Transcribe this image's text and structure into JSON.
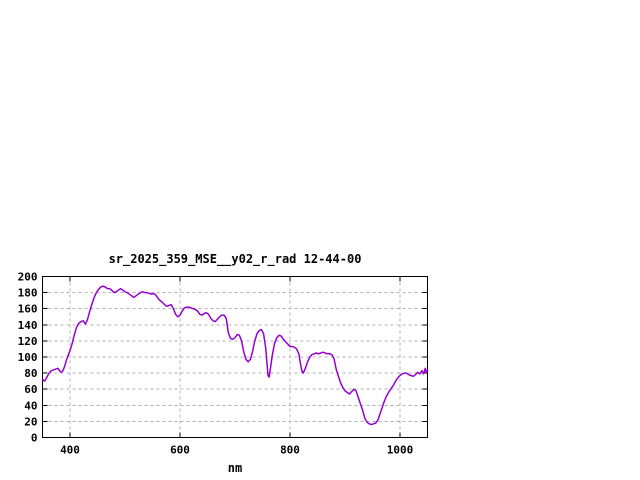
{
  "page": {
    "background": "#ffffff"
  },
  "chart_data": {
    "type": "line",
    "title": "sr_2025_359_MSE__y02_r_rad 12-44-00",
    "xlabel": "nm",
    "ylabel": "",
    "x_range": [
      350,
      1050
    ],
    "y_range": [
      0,
      200
    ],
    "x_ticks": [
      400,
      600,
      800,
      1000
    ],
    "y_ticks": [
      0,
      20,
      40,
      60,
      80,
      100,
      120,
      140,
      160,
      180,
      200
    ],
    "grid": true,
    "legend": "none",
    "line_color": "#9400d3",
    "grid_color": "#b2b2b2",
    "border_color": "#000000",
    "series": [
      {
        "points": [
          [
            350,
            72
          ],
          [
            354,
            70
          ],
          [
            358,
            75
          ],
          [
            362,
            80
          ],
          [
            366,
            83
          ],
          [
            370,
            84
          ],
          [
            374,
            85
          ],
          [
            378,
            86
          ],
          [
            381,
            83
          ],
          [
            384,
            81
          ],
          [
            387,
            83
          ],
          [
            390,
            88
          ],
          [
            393,
            95
          ],
          [
            396,
            101
          ],
          [
            400,
            108
          ],
          [
            404,
            117
          ],
          [
            408,
            128
          ],
          [
            412,
            137
          ],
          [
            416,
            142
          ],
          [
            420,
            144
          ],
          [
            424,
            145
          ],
          [
            428,
            141
          ],
          [
            432,
            147
          ],
          [
            436,
            157
          ],
          [
            440,
            166
          ],
          [
            444,
            174
          ],
          [
            448,
            180
          ],
          [
            452,
            184
          ],
          [
            456,
            187
          ],
          [
            460,
            188
          ],
          [
            464,
            187
          ],
          [
            468,
            185
          ],
          [
            472,
            185
          ],
          [
            476,
            183
          ],
          [
            480,
            180
          ],
          [
            484,
            181
          ],
          [
            488,
            183
          ],
          [
            492,
            185
          ],
          [
            496,
            183
          ],
          [
            500,
            181
          ],
          [
            504,
            180
          ],
          [
            508,
            178
          ],
          [
            512,
            176
          ],
          [
            516,
            174
          ],
          [
            520,
            176
          ],
          [
            524,
            178
          ],
          [
            528,
            180
          ],
          [
            532,
            181
          ],
          [
            536,
            180
          ],
          [
            540,
            180
          ],
          [
            544,
            179
          ],
          [
            548,
            178
          ],
          [
            552,
            179
          ],
          [
            556,
            177
          ],
          [
            560,
            173
          ],
          [
            564,
            170
          ],
          [
            568,
            168
          ],
          [
            572,
            165
          ],
          [
            576,
            163
          ],
          [
            580,
            164
          ],
          [
            584,
            165
          ],
          [
            588,
            160
          ],
          [
            592,
            153
          ],
          [
            596,
            150
          ],
          [
            600,
            152
          ],
          [
            604,
            157
          ],
          [
            608,
            161
          ],
          [
            612,
            162
          ],
          [
            616,
            162
          ],
          [
            620,
            161
          ],
          [
            624,
            160
          ],
          [
            628,
            159
          ],
          [
            632,
            157
          ],
          [
            636,
            153
          ],
          [
            640,
            152
          ],
          [
            644,
            154
          ],
          [
            648,
            155
          ],
          [
            652,
            153
          ],
          [
            656,
            148
          ],
          [
            660,
            145
          ],
          [
            664,
            144
          ],
          [
            668,
            147
          ],
          [
            672,
            150
          ],
          [
            676,
            152
          ],
          [
            680,
            152
          ],
          [
            684,
            148
          ],
          [
            688,
            130
          ],
          [
            692,
            123
          ],
          [
            696,
            122
          ],
          [
            700,
            124
          ],
          [
            704,
            128
          ],
          [
            708,
            127
          ],
          [
            712,
            120
          ],
          [
            716,
            106
          ],
          [
            720,
            97
          ],
          [
            724,
            94
          ],
          [
            728,
            97
          ],
          [
            732,
            107
          ],
          [
            736,
            120
          ],
          [
            740,
            129
          ],
          [
            744,
            133
          ],
          [
            748,
            134
          ],
          [
            752,
            129
          ],
          [
            756,
            110
          ],
          [
            760,
            77
          ],
          [
            762,
            75
          ],
          [
            764,
            84
          ],
          [
            768,
            103
          ],
          [
            772,
            117
          ],
          [
            776,
            124
          ],
          [
            780,
            127
          ],
          [
            784,
            126
          ],
          [
            788,
            122
          ],
          [
            792,
            119
          ],
          [
            796,
            116
          ],
          [
            800,
            113
          ],
          [
            804,
            113
          ],
          [
            808,
            112
          ],
          [
            812,
            110
          ],
          [
            816,
            104
          ],
          [
            820,
            88
          ],
          [
            822,
            82
          ],
          [
            824,
            80
          ],
          [
            828,
            86
          ],
          [
            832,
            94
          ],
          [
            836,
            100
          ],
          [
            840,
            103
          ],
          [
            844,
            104
          ],
          [
            848,
            105
          ],
          [
            852,
            104
          ],
          [
            856,
            105
          ],
          [
            860,
            106
          ],
          [
            864,
            105
          ],
          [
            868,
            104
          ],
          [
            872,
            104
          ],
          [
            876,
            103
          ],
          [
            880,
            98
          ],
          [
            884,
            85
          ],
          [
            888,
            76
          ],
          [
            892,
            68
          ],
          [
            896,
            62
          ],
          [
            900,
            58
          ],
          [
            904,
            56
          ],
          [
            908,
            54
          ],
          [
            912,
            57
          ],
          [
            916,
            60
          ],
          [
            920,
            58
          ],
          [
            924,
            50
          ],
          [
            928,
            42
          ],
          [
            932,
            34
          ],
          [
            936,
            24
          ],
          [
            940,
            19
          ],
          [
            944,
            17
          ],
          [
            948,
            16
          ],
          [
            952,
            17
          ],
          [
            956,
            18
          ],
          [
            960,
            22
          ],
          [
            964,
            30
          ],
          [
            968,
            38
          ],
          [
            972,
            46
          ],
          [
            976,
            52
          ],
          [
            980,
            57
          ],
          [
            984,
            61
          ],
          [
            988,
            65
          ],
          [
            992,
            70
          ],
          [
            996,
            74
          ],
          [
            1000,
            77
          ],
          [
            1004,
            79
          ],
          [
            1008,
            80
          ],
          [
            1012,
            80
          ],
          [
            1016,
            78
          ],
          [
            1020,
            77
          ],
          [
            1024,
            76
          ],
          [
            1028,
            78
          ],
          [
            1032,
            81
          ],
          [
            1036,
            79
          ],
          [
            1040,
            83
          ],
          [
            1043,
            79
          ],
          [
            1046,
            86
          ],
          [
            1048,
            81
          ],
          [
            1050,
            84
          ]
        ]
      }
    ]
  }
}
